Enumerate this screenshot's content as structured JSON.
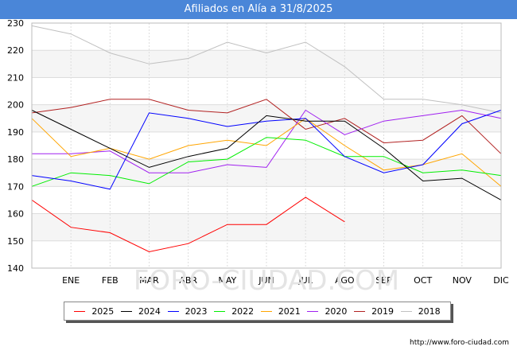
{
  "chart_data": {
    "type": "line",
    "title": "Afiliados en Alía a 31/8/2025",
    "x_labels": [
      "",
      "ENE",
      "FEB",
      "MAR",
      "ABR",
      "MAY",
      "JUN",
      "JUL",
      "AGO",
      "SEP",
      "OCT",
      "NOV",
      "DIC"
    ],
    "y_ticks": [
      140,
      150,
      160,
      170,
      180,
      190,
      200,
      210,
      220,
      230
    ],
    "ylim": [
      140,
      230
    ],
    "grid": true,
    "legend_position": "bottom",
    "series": [
      {
        "name": "2025",
        "color": "#ff0000",
        "values": [
          165,
          155,
          153,
          146,
          149,
          156,
          156,
          166,
          157
        ]
      },
      {
        "name": "2024",
        "color": "#000000",
        "values": [
          198,
          191,
          184,
          177,
          181,
          184,
          196,
          194,
          194,
          184,
          172,
          173,
          165
        ]
      },
      {
        "name": "2023",
        "color": "#0000ff",
        "values": [
          174,
          172,
          169,
          197,
          195,
          192,
          194,
          195,
          181,
          175,
          178,
          193,
          198
        ]
      },
      {
        "name": "2022",
        "color": "#00ee00",
        "values": [
          170,
          175,
          174,
          171,
          179,
          180,
          188,
          187,
          181,
          181,
          175,
          176,
          174
        ]
      },
      {
        "name": "2021",
        "color": "#ffa500",
        "values": [
          195,
          181,
          184,
          180,
          185,
          187,
          185,
          195,
          185,
          176,
          178,
          182,
          170
        ]
      },
      {
        "name": "2020",
        "color": "#a020f0",
        "values": [
          182,
          182,
          183,
          175,
          175,
          178,
          177,
          198,
          189,
          194,
          196,
          198,
          195
        ]
      },
      {
        "name": "2019",
        "color": "#b22222",
        "values": [
          197,
          199,
          202,
          202,
          198,
          197,
          202,
          191,
          195,
          186,
          187,
          196,
          182
        ]
      },
      {
        "name": "2018",
        "color": "#c0c0c0",
        "values": [
          229,
          226,
          219,
          215,
          217,
          223,
          219,
          223,
          214,
          202,
          202,
          200,
          197
        ]
      }
    ]
  },
  "watermark": "FORO-CIUDAD.COM",
  "source": "http://www.foro-ciudad.com"
}
